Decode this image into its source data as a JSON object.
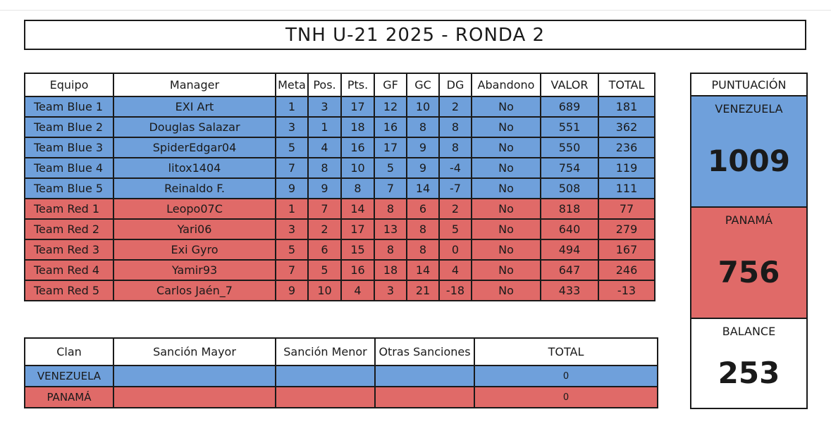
{
  "title": "TNH U-21 2025 - RONDA 2",
  "colors": {
    "team_blue": "#6fa0db",
    "team_red": "#e06a68"
  },
  "main_table": {
    "headers": [
      "Equipo",
      "Manager",
      "Meta",
      "Pos.",
      "Pts.",
      "GF",
      "GC",
      "DG",
      "Abandono",
      "VALOR",
      "TOTAL"
    ],
    "rows": [
      {
        "team": "blue",
        "cells": [
          "Team Blue 1",
          "EXI Art",
          "1",
          "3",
          "17",
          "12",
          "10",
          "2",
          "No",
          "689",
          "181"
        ]
      },
      {
        "team": "blue",
        "cells": [
          "Team Blue 2",
          "Douglas Salazar",
          "3",
          "1",
          "18",
          "16",
          "8",
          "8",
          "No",
          "551",
          "362"
        ]
      },
      {
        "team": "blue",
        "cells": [
          "Team Blue 3",
          "SpiderEdgar04",
          "5",
          "4",
          "16",
          "17",
          "9",
          "8",
          "No",
          "550",
          "236"
        ]
      },
      {
        "team": "blue",
        "cells": [
          "Team Blue 4",
          "litox1404",
          "7",
          "8",
          "10",
          "5",
          "9",
          "-4",
          "No",
          "754",
          "119"
        ]
      },
      {
        "team": "blue",
        "cells": [
          "Team Blue 5",
          "Reinaldo F.",
          "9",
          "9",
          "8",
          "7",
          "14",
          "-7",
          "No",
          "508",
          "111"
        ]
      },
      {
        "team": "red",
        "cells": [
          "Team Red 1",
          "Leopo07C",
          "1",
          "7",
          "14",
          "8",
          "6",
          "2",
          "No",
          "818",
          "77"
        ]
      },
      {
        "team": "red",
        "cells": [
          "Team Red 2",
          "Yari06",
          "3",
          "2",
          "17",
          "13",
          "8",
          "5",
          "No",
          "640",
          "279"
        ]
      },
      {
        "team": "red",
        "cells": [
          "Team Red 3",
          "Exi Gyro",
          "5",
          "6",
          "15",
          "8",
          "8",
          "0",
          "No",
          "494",
          "167"
        ]
      },
      {
        "team": "red",
        "cells": [
          "Team Red 4",
          "Yamir93",
          "7",
          "5",
          "16",
          "18",
          "14",
          "4",
          "No",
          "647",
          "246"
        ]
      },
      {
        "team": "red",
        "cells": [
          "Team Red 5",
          "Carlos Jaén_7",
          "9",
          "10",
          "4",
          "3",
          "21",
          "-18",
          "No",
          "433",
          "-13"
        ]
      }
    ]
  },
  "sanctions_table": {
    "headers": [
      "Clan",
      "Sanción Mayor",
      "Sanción Menor",
      "Otras Sanciones",
      "TOTAL"
    ],
    "rows": [
      {
        "team": "blue",
        "cells": [
          "VENEZUELA",
          "",
          "",
          "",
          "0"
        ]
      },
      {
        "team": "red",
        "cells": [
          "PANAMÁ",
          "",
          "",
          "",
          "0"
        ]
      }
    ]
  },
  "score_panel": {
    "header": "PUNTUACIÓN",
    "venezuela": {
      "label": "VENEZUELA",
      "value": "1009"
    },
    "panama": {
      "label": "PANAMÁ",
      "value": "756"
    },
    "balance": {
      "label": "BALANCE",
      "value": "253"
    }
  }
}
